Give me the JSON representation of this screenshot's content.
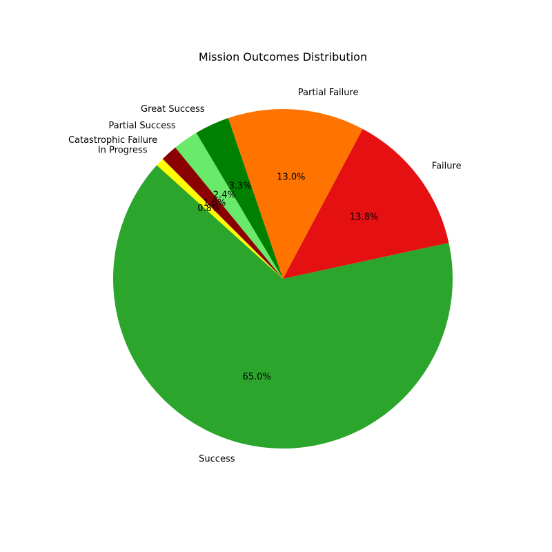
{
  "chart_data": {
    "type": "pie",
    "title": "Mission Outcomes Distribution",
    "start_angle_deg": 138,
    "direction": "counterclockwise",
    "slices": [
      {
        "label": "Success",
        "value": 65.0,
        "pct_label": "65.0%",
        "color": "#2ca52c"
      },
      {
        "label": "Failure",
        "value": 13.8,
        "pct_label": "13.8%",
        "color": "#e41012"
      },
      {
        "label": "Partial Failure",
        "value": 13.0,
        "pct_label": "13.0%",
        "color": "#ff7300"
      },
      {
        "label": "Great Success",
        "value": 3.3,
        "pct_label": "3.3%",
        "color": "#008000"
      },
      {
        "label": "Partial Success",
        "value": 2.4,
        "pct_label": "2.4%",
        "color": "#6aea6a"
      },
      {
        "label": "Catastrophic Failure",
        "value": 1.6,
        "pct_label": "1.6%",
        "color": "#8b0000"
      },
      {
        "label": "In Progress",
        "value": 0.8,
        "pct_label": "0.8%",
        "color": "#ffff00"
      }
    ]
  }
}
